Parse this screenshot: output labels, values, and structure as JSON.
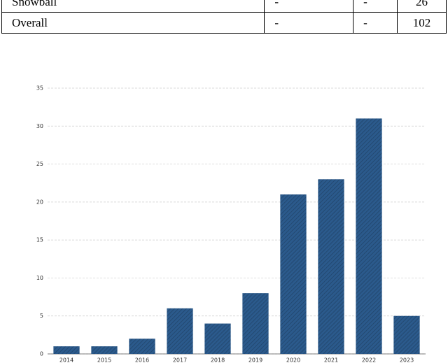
{
  "table": {
    "rows": [
      [
        "Snowball",
        "-",
        "-",
        "26"
      ],
      [
        "Overall",
        "-",
        "-",
        "102"
      ]
    ]
  },
  "chart_data": {
    "type": "bar",
    "categories": [
      "2014",
      "2015",
      "2016",
      "2017",
      "2018",
      "2019",
      "2020",
      "2021",
      "2022",
      "2023"
    ],
    "values": [
      1,
      1,
      2,
      6,
      4,
      8,
      21,
      23,
      31,
      5
    ],
    "color": "#2b5a8c",
    "ylim": [
      0,
      35
    ],
    "yticks": [
      0,
      5,
      10,
      15,
      20,
      25,
      30,
      35
    ],
    "grid": true
  }
}
